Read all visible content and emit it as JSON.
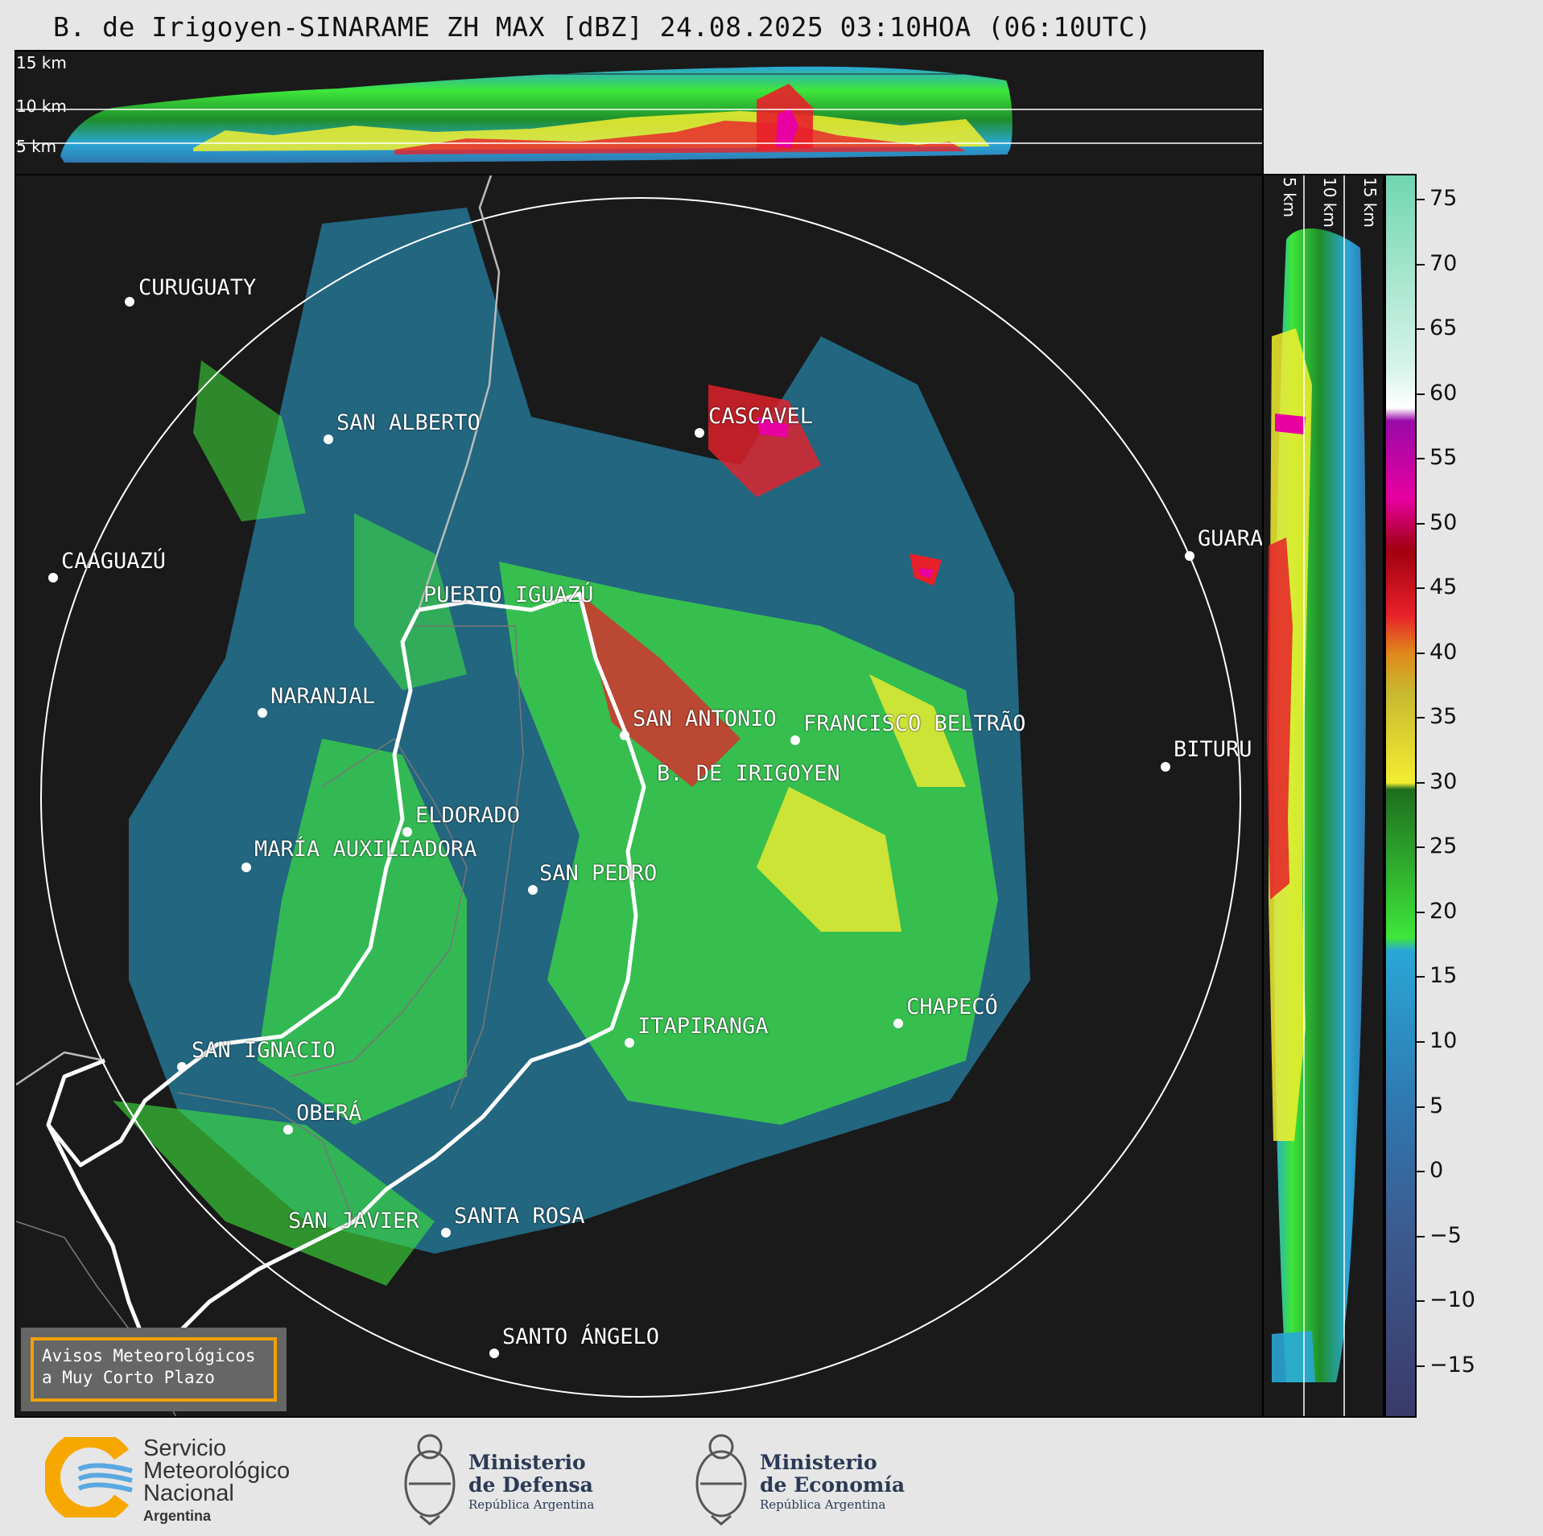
{
  "title": "B. de Irigoyen-SINARAME ZH MAX [dBZ] 24.08.2025 03:10HOA (06:10UTC)",
  "top_section": {
    "labels": [
      "15 km",
      "10 km",
      "5 km"
    ]
  },
  "right_section": {
    "labels": [
      "5 km",
      "10 km",
      "15 km"
    ]
  },
  "cities": [
    {
      "name": "CURUGUATY"
    },
    {
      "name": "SAN ALBERTO"
    },
    {
      "name": "CASCAVEL"
    },
    {
      "name": "CAAGUAZÚ"
    },
    {
      "name": "GUARA"
    },
    {
      "name": "PUERTO IGUAZÚ"
    },
    {
      "name": "NARANJAL"
    },
    {
      "name": "SAN ANTONIO"
    },
    {
      "name": "FRANCISCO BELTRÃO"
    },
    {
      "name": "B. DE IRIGOYEN"
    },
    {
      "name": "BITURU"
    },
    {
      "name": "ELDORADO"
    },
    {
      "name": "MARÍA AUXILIADORA"
    },
    {
      "name": "SAN PEDRO"
    },
    {
      "name": "CHAPECÓ"
    },
    {
      "name": "ITAPIRANGA"
    },
    {
      "name": "SAN IGNACIO"
    },
    {
      "name": "OBERÁ"
    },
    {
      "name": "SAN JAVIER"
    },
    {
      "name": "SANTA ROSA"
    },
    {
      "name": "SANTO ÁNGELO"
    }
  ],
  "warning": {
    "line1": "Avisos Meteorológicos",
    "line2": "a Muy Corto Plazo"
  },
  "colorbar": {
    "unit": "dBZ",
    "min": -19,
    "max": 77,
    "ticks": [
      "75",
      "70",
      "65",
      "60",
      "55",
      "50",
      "45",
      "40",
      "35",
      "30",
      "25",
      "20",
      "15",
      "10",
      "5",
      "0",
      "−5",
      "−10",
      "−15"
    ],
    "stops": [
      {
        "v": -19,
        "c": "#3a3a6a"
      },
      {
        "v": -5,
        "c": "#3c5a8e"
      },
      {
        "v": 5,
        "c": "#2f78b0"
      },
      {
        "v": 17,
        "c": "#2aa6d6"
      },
      {
        "v": 18,
        "c": "#3ee63a"
      },
      {
        "v": 29.5,
        "c": "#1f6e1f"
      },
      {
        "v": 30,
        "c": "#f2ee30"
      },
      {
        "v": 37,
        "c": "#c8b830"
      },
      {
        "v": 40,
        "c": "#e08a1a"
      },
      {
        "v": 43,
        "c": "#e8202a"
      },
      {
        "v": 48,
        "c": "#a00010"
      },
      {
        "v": 52,
        "c": "#e800a0"
      },
      {
        "v": 58,
        "c": "#9a0aa8"
      },
      {
        "v": 59,
        "c": "#ffffff"
      },
      {
        "v": 62,
        "c": "#d8f4ea"
      },
      {
        "v": 77,
        "c": "#70d6b0"
      }
    ]
  },
  "footer": {
    "smn": {
      "line1": "Servicio",
      "line2": "Meteorológico",
      "line3": "Nacional",
      "line4": "Argentina"
    },
    "defensa": {
      "line1": "Ministerio",
      "line2": "de Defensa",
      "line3": "República Argentina"
    },
    "economia": {
      "line1": "Ministerio",
      "line2": "de Economía",
      "line3": "República Argentina"
    }
  }
}
